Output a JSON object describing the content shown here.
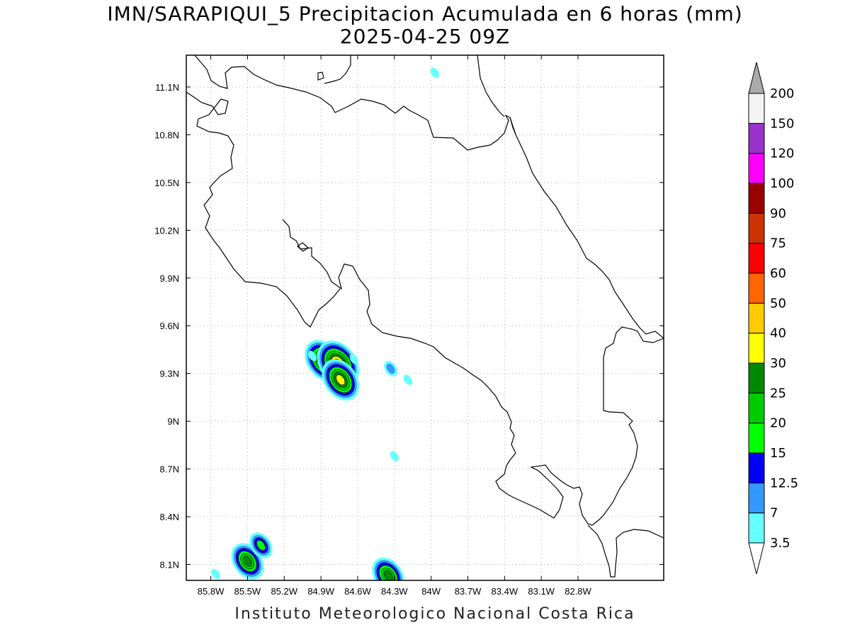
{
  "title": {
    "line1": "IMN/SARAPIQUI_5 Precipitacion Acumulada en 6 horas (mm)",
    "line2": "2025-04-25 09Z"
  },
  "footer": "Instituto Meteorologico Nacional Costa Rica",
  "map": {
    "lon_range": [
      -86.0,
      -82.1
    ],
    "lat_range": [
      8.0,
      11.3
    ],
    "lon_ticks": [
      "85.8W",
      "85.5W",
      "85.2W",
      "84.9W",
      "84.6W",
      "84.3W",
      "84W",
      "83.7W",
      "83.4W",
      "83.1W",
      "82.8W"
    ],
    "lon_tick_values": [
      -85.8,
      -85.5,
      -85.2,
      -84.9,
      -84.6,
      -84.3,
      -84.0,
      -83.7,
      -83.4,
      -83.1,
      -82.8
    ],
    "lat_ticks": [
      "8.1N",
      "8.4N",
      "8.7N",
      "9N",
      "9.3N",
      "9.6N",
      "9.9N",
      "10.2N",
      "10.5N",
      "10.8N",
      "11.1N"
    ],
    "lat_tick_values": [
      8.1,
      8.4,
      8.7,
      9.0,
      9.3,
      9.6,
      9.9,
      10.2,
      10.5,
      10.8,
      11.1
    ],
    "grid": true,
    "precip_cells": [
      {
        "lon": -84.88,
        "lat": 9.38,
        "peak_mm": 30
      },
      {
        "lon": -84.76,
        "lat": 9.36,
        "peak_mm": 40
      },
      {
        "lon": -84.74,
        "lat": 9.26,
        "peak_mm": 30
      },
      {
        "lon": -85.5,
        "lat": 8.12,
        "peak_mm": 25
      },
      {
        "lon": -85.39,
        "lat": 8.22,
        "peak_mm": 15
      },
      {
        "lon": -84.35,
        "lat": 8.03,
        "peak_mm": 25
      },
      {
        "lon": -84.33,
        "lat": 9.33,
        "peak_mm": 7
      },
      {
        "lon": -84.63,
        "lat": 9.39,
        "peak_mm": 3.5
      },
      {
        "lon": -84.97,
        "lat": 9.41,
        "peak_mm": 3.5
      },
      {
        "lon": -84.19,
        "lat": 9.26,
        "peak_mm": 3.5
      },
      {
        "lon": -84.3,
        "lat": 8.78,
        "peak_mm": 3.5
      },
      {
        "lon": -83.97,
        "lat": 11.19,
        "peak_mm": 3.5
      },
      {
        "lon": -85.76,
        "lat": 8.04,
        "peak_mm": 3.5
      }
    ]
  },
  "legend": {
    "labels": [
      "3.5",
      "7",
      "12.5",
      "15",
      "20",
      "25",
      "30",
      "40",
      "50",
      "60",
      "75",
      "90",
      "100",
      "120",
      "150",
      "200"
    ],
    "colors": [
      "#ffffff",
      "#66ffff",
      "#3399ff",
      "#0000ff",
      "#00ff00",
      "#00cc00",
      "#008800",
      "#ffff00",
      "#ffcc00",
      "#ff6600",
      "#ff0000",
      "#cc3300",
      "#990000",
      "#ff00ff",
      "#9933cc",
      "#f4f4f4",
      "#aaaaaa"
    ]
  }
}
